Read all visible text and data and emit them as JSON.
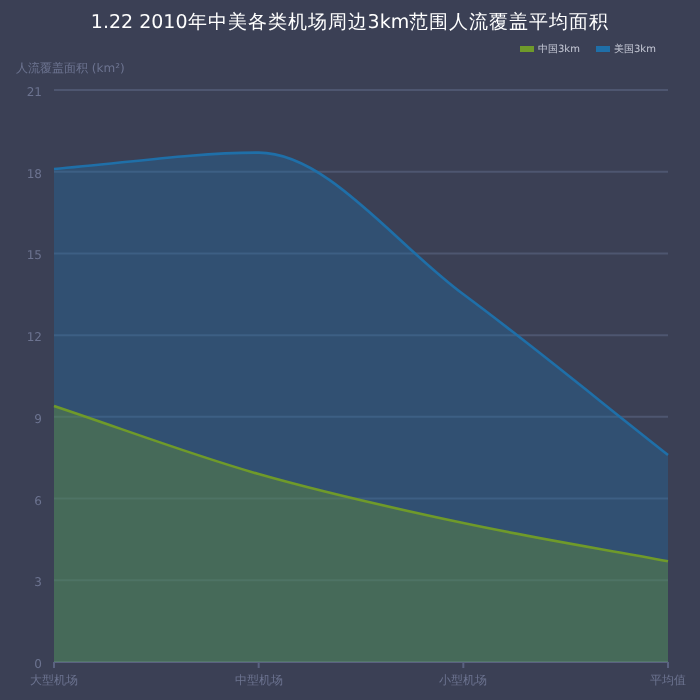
{
  "chart_data": {
    "type": "area",
    "title": "1.22 2010年中美各类机场周边3km范围人流覆盖平均面积",
    "ylabel": "人流覆盖面积 (km²)",
    "categories": [
      "大型机场",
      "中型机场",
      "小型机场",
      "平均值"
    ],
    "series": [
      {
        "name": "中国3km",
        "color": "#6f9a2a",
        "values": [
          9.4,
          6.9,
          5.1,
          3.7
        ]
      },
      {
        "name": "美国3km",
        "color": "#1f6fa8",
        "values": [
          18.1,
          18.7,
          13.5,
          7.6
        ]
      }
    ],
    "ylim": [
      0,
      21
    ],
    "yticks": [
      0,
      3,
      6,
      9,
      12,
      15,
      18,
      21
    ],
    "grid": "y",
    "legend": "top right"
  }
}
